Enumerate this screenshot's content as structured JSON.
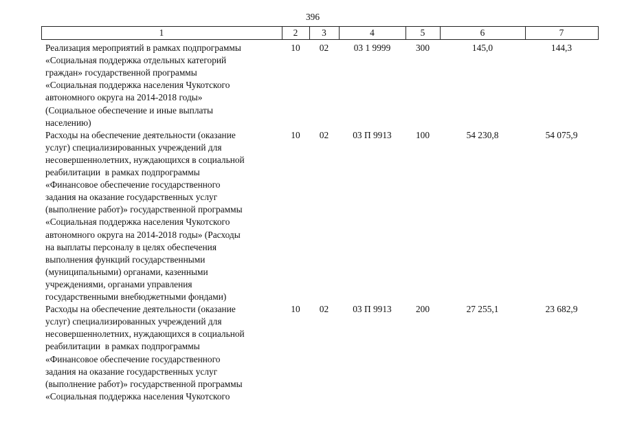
{
  "page_number": "396",
  "table": {
    "header": [
      "1",
      "2",
      "3",
      "4",
      "5",
      "6",
      "7"
    ],
    "rows": [
      {
        "lines": [
          "Реализация мероприятий в рамках подпрограммы",
          "«Социальная поддержка отдельных категорий",
          "граждан» государственной программы",
          "«Социальная поддержка населения Чукотского",
          "автономного округа на 2014-2018 годы»",
          "(Социальное обеспечение и иные выплаты",
          "населению)"
        ],
        "cells": [
          "10",
          "02",
          "03 1 9999",
          "300",
          "145,0",
          "144,3"
        ]
      },
      {
        "lines": [
          "Расходы на обеспечение деятельности (оказание",
          "услуг) специализированных учреждений для",
          "несовершеннолетних, нуждающихся в социальной",
          "реабилитации  в рамках подпрограммы",
          "«Финансовое обеспечение государственного",
          "задания на оказание государственных услуг",
          "(выполнение работ)» государственной программы",
          "«Социальная поддержка населения Чукотского",
          "автономного округа на 2014-2018 годы» (Расходы",
          "на выплаты персоналу в целях обеспечения",
          "выполнения функций государственными",
          "(муниципальными) органами, казенными",
          "учреждениями, органами управления",
          "государственными внебюджетными фондами)"
        ],
        "cells": [
          "10",
          "02",
          "03 П 9913",
          "100",
          "54 230,8",
          "54 075,9"
        ]
      },
      {
        "lines": [
          "Расходы на обеспечение деятельности (оказание",
          "услуг) специализированных учреждений для",
          "несовершеннолетних, нуждающихся в социальной",
          "реабилитации  в рамках подпрограммы",
          "«Финансовое обеспечение государственного",
          "задания на оказание государственных услуг",
          "(выполнение работ)» государственной программы",
          "«Социальная поддержка населения Чукотского"
        ],
        "cells": [
          "10",
          "02",
          "03 П 9913",
          "200",
          "27 255,1",
          "23 682,9"
        ]
      }
    ]
  }
}
